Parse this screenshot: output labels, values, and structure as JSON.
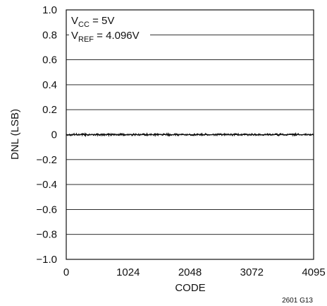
{
  "chart_data": {
    "type": "line",
    "title": "",
    "xlabel": "CODE",
    "ylabel": "DNL (LSB)",
    "xlim": [
      0,
      4095
    ],
    "ylim": [
      -1.0,
      1.0
    ],
    "x_ticks": [
      0,
      1024,
      2048,
      3072,
      4095
    ],
    "x_tick_labels": [
      "0",
      "1024",
      "2048",
      "3072",
      "4095"
    ],
    "y_ticks": [
      1.0,
      0.8,
      0.6,
      0.4,
      0.2,
      0,
      -0.2,
      -0.4,
      -0.6,
      -0.8,
      -1.0
    ],
    "y_tick_labels": [
      "1.0",
      "0.8",
      "0.6",
      "0.4",
      "0.2",
      "0",
      "−0.2",
      "−0.4",
      "−0.6",
      "−0.8",
      "−1.0"
    ],
    "grid": "horizontal",
    "series": [
      {
        "color": "#111111",
        "x": [
          0,
          64,
          128,
          192,
          256,
          320,
          384,
          448,
          512,
          576,
          640,
          704,
          768,
          832,
          896,
          960,
          1024,
          1088,
          1152,
          1216,
          1280,
          1344,
          1408,
          1472,
          1536,
          1600,
          1664,
          1728,
          1792,
          1856,
          1920,
          1984,
          2048,
          2112,
          2176,
          2240,
          2304,
          2368,
          2432,
          2496,
          2560,
          2624,
          2688,
          2752,
          2816,
          2880,
          2944,
          3008,
          3072,
          3136,
          3200,
          3264,
          3328,
          3392,
          3456,
          3520,
          3584,
          3648,
          3712,
          3776,
          3840,
          3904,
          3968,
          4032,
          4095
        ],
        "y": [
          0.005,
          -0.006,
          0.008,
          -0.004,
          0.006,
          -0.008,
          0.004,
          -0.005,
          0.007,
          -0.006,
          0.003,
          -0.007,
          0.006,
          -0.004,
          0.008,
          -0.005,
          0.004,
          -0.008,
          0.006,
          -0.003,
          0.007,
          -0.006,
          0.005,
          -0.007,
          0.004,
          -0.005,
          0.008,
          -0.004,
          0.006,
          -0.008,
          0.005,
          -0.006,
          0.003,
          -0.007,
          0.006,
          -0.005,
          0.008,
          -0.004,
          0.005,
          -0.006,
          0.007,
          -0.005,
          0.004,
          -0.008,
          0.006,
          -0.004,
          0.005,
          -0.007,
          0.008,
          -0.005,
          0.004,
          -0.006,
          0.007,
          -0.004,
          0.005,
          -0.008,
          0.006,
          -0.005,
          0.004,
          -0.006,
          0.008,
          -0.004,
          0.006,
          -0.005,
          0.004
        ]
      }
    ],
    "annotations": {
      "vcc": {
        "symbol": "V",
        "subscript": "CC",
        "rest": " = 5V"
      },
      "vref": {
        "symbol": "V",
        "subscript": "REF",
        "rest": " = 4.096V"
      }
    },
    "figure_id": "2601 G13"
  }
}
